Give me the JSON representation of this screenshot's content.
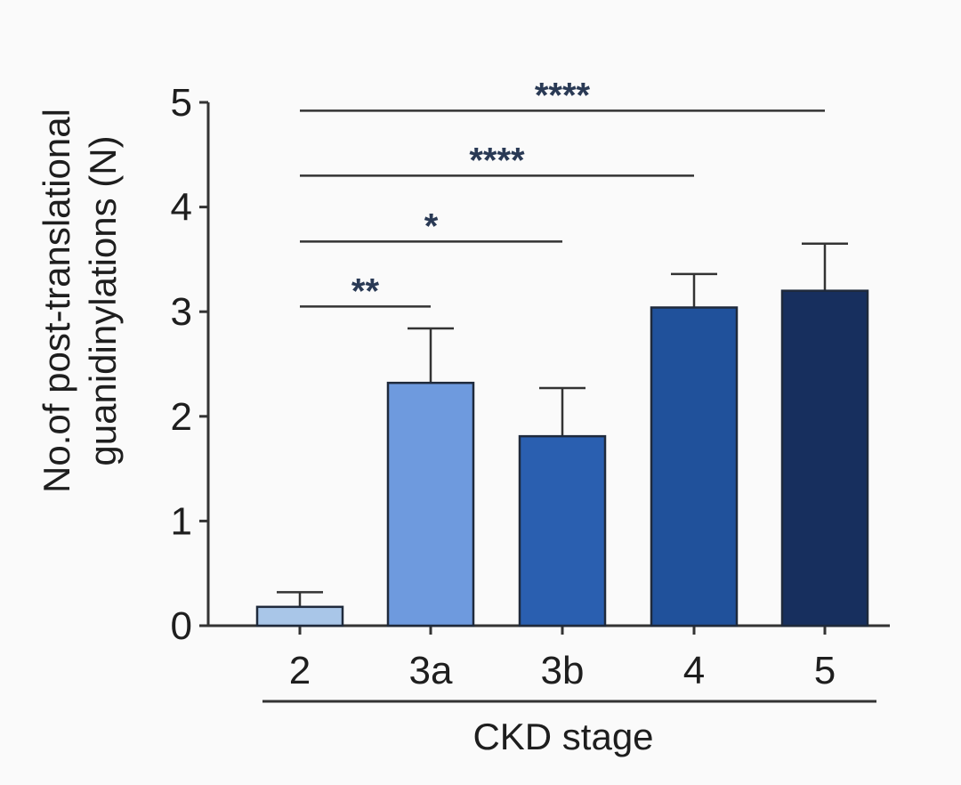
{
  "chart_data": {
    "type": "bar",
    "xlabel": "CKD stage",
    "ylabel": [
      "No.of post-translational",
      "guanidinylations (N)"
    ],
    "categories": [
      "2",
      "3a",
      "3b",
      "4",
      "5"
    ],
    "values": [
      0.18,
      2.32,
      1.81,
      3.04,
      3.2
    ],
    "error_upper": [
      0.32,
      2.84,
      2.27,
      3.36,
      3.65
    ],
    "colors": [
      "#a9c6e8",
      "#6e9ade",
      "#2a5fb0",
      "#20519b",
      "#172f5e"
    ],
    "ylim": [
      0,
      5
    ],
    "yticks": [
      "0",
      "1",
      "2",
      "3",
      "4",
      "5"
    ],
    "grid": false,
    "significance": [
      {
        "from": 0,
        "to": 1,
        "y": 3.05,
        "label": "**"
      },
      {
        "from": 0,
        "to": 2,
        "y": 3.67,
        "label": "*"
      },
      {
        "from": 0,
        "to": 3,
        "y": 4.3,
        "label": "****"
      },
      {
        "from": 0,
        "to": 4,
        "y": 4.92,
        "label": "****"
      }
    ]
  }
}
